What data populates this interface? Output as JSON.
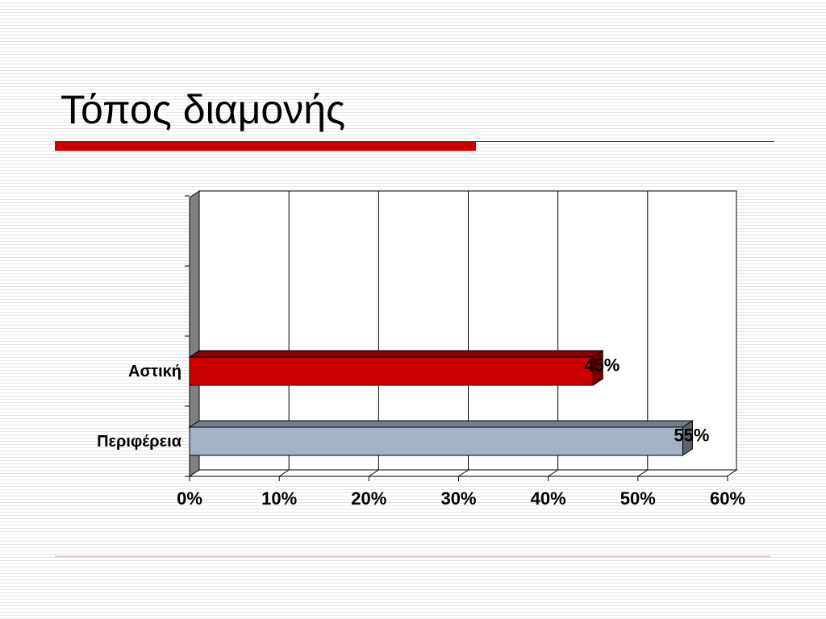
{
  "chart_data": {
    "type": "bar",
    "orientation": "horizontal",
    "title": "Τόπος διαμονής",
    "categories": [
      "Περιφέρεια",
      "Αστική"
    ],
    "values": [
      55,
      45
    ],
    "value_labels": [
      "55%",
      "45%"
    ],
    "colors": [
      "#a3b3c5",
      "#cc0000"
    ],
    "xlim": [
      0,
      60
    ],
    "xticks": [
      {
        "value": 0,
        "label": "0%"
      },
      {
        "value": 10,
        "label": "10%"
      },
      {
        "value": 20,
        "label": "20%"
      },
      {
        "value": 30,
        "label": "30%"
      },
      {
        "value": 40,
        "label": "40%"
      },
      {
        "value": 50,
        "label": "50%"
      },
      {
        "value": 60,
        "label": "60%"
      }
    ],
    "grid": true
  }
}
